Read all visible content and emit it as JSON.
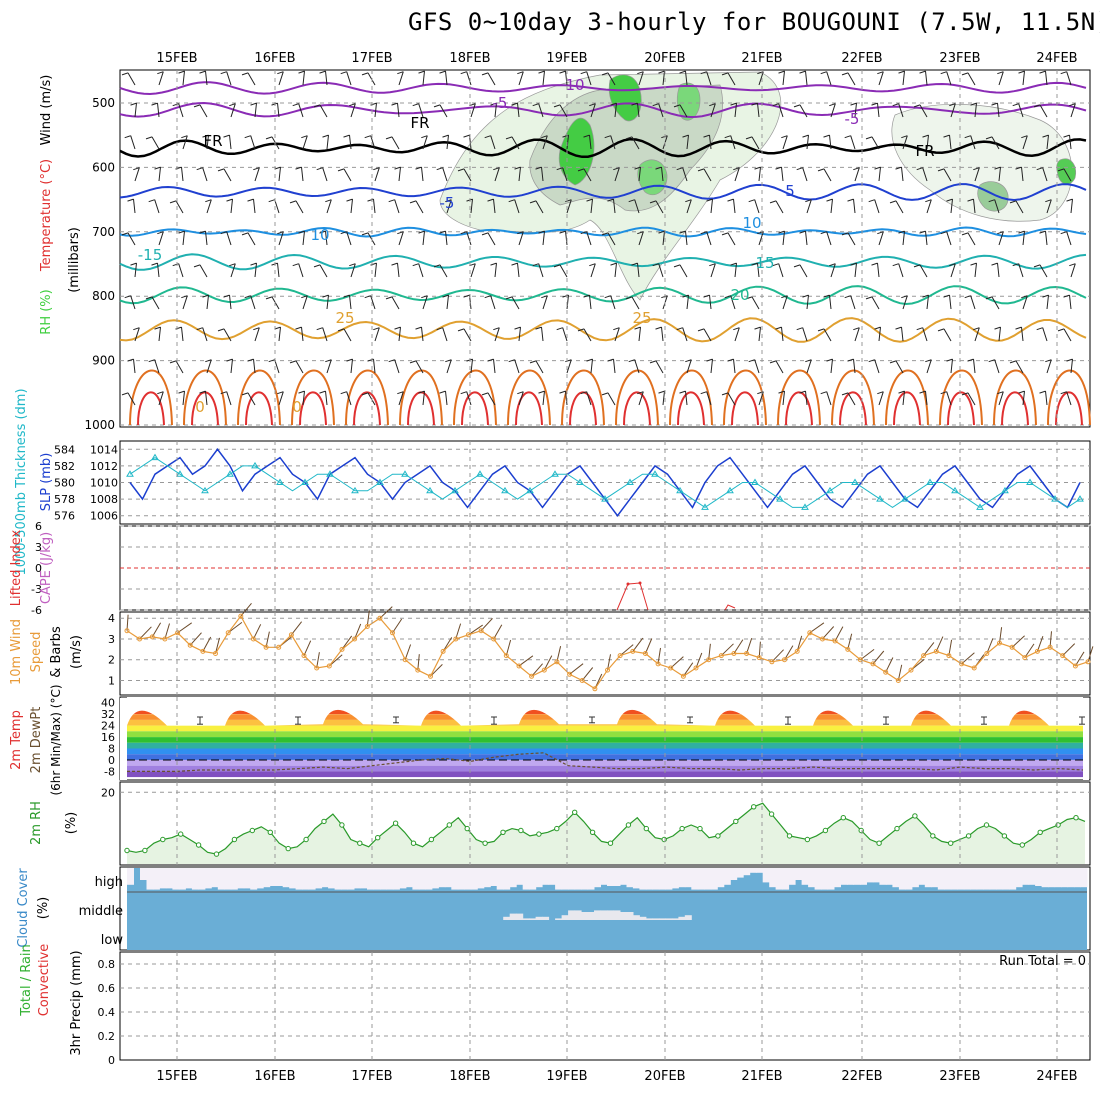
{
  "title": "GFS 0~10day 3-hourly for BOUGOUNI (7.5W, 11.5N)",
  "colors": {
    "rh_green": "#3fcf3f",
    "purple": "#8a2bb5",
    "blue": "#2040d0",
    "lightblue": "#1e8fe0",
    "teal": "#20b0b0",
    "green_teal": "#20b890",
    "orange": "#e0a030",
    "dark_orange": "#e07020",
    "red": "#e03030",
    "slp_blue": "#1c3fcf",
    "thickness_cyan": "#20b8c8",
    "wind_orange": "#e89b3a",
    "rh2m_green": "#2a9a2a",
    "cloud_blue": "#6aaed6",
    "cloud_white": "#f4f0f8"
  },
  "chart_data": {
    "type": "meteogram",
    "x_labels": [
      "15FEB",
      "16FEB",
      "17FEB",
      "18FEB",
      "19FEB",
      "20FEB",
      "21FEB",
      "22FEB",
      "23FEB",
      "24FEB"
    ],
    "panels": {
      "upper_air": {
        "ylabel_parts": [
          "RH (%)",
          "Temperature (°C)",
          "Wind (m/s)",
          "(millibars)"
        ],
        "yticks": [
          "500",
          "600",
          "700",
          "800",
          "900",
          "1000"
        ],
        "contour_labels": [
          "10",
          "-5",
          "FR",
          "FR",
          "FR",
          "-5",
          "5",
          "-5",
          "10",
          "10",
          "-15",
          "15",
          "20",
          "25",
          "25",
          "0",
          "0"
        ]
      },
      "slp": {
        "ylabel_left": "1000-500mb Thickness (dm)",
        "ylabel_right": "SLP (mb)",
        "left_ticks": [
          "584",
          "582",
          "580",
          "578",
          "576"
        ],
        "right_ticks": [
          "1014",
          "1012",
          "1010",
          "1008",
          "1006"
        ],
        "slp": [
          1010,
          1008,
          1011,
          1012,
          1013,
          1011,
          1012,
          1014,
          1012,
          1009,
          1011,
          1012,
          1013,
          1011,
          1010,
          1008,
          1011,
          1012,
          1013,
          1011,
          1010,
          1008,
          1010,
          1011,
          1012,
          1010,
          1009,
          1007,
          1009,
          1011,
          1012,
          1010,
          1009,
          1007,
          1009,
          1011,
          1012,
          1010,
          1008,
          1006,
          1008,
          1010,
          1012,
          1011,
          1009,
          1007,
          1010,
          1012,
          1013,
          1011,
          1009,
          1007,
          1009,
          1011,
          1012,
          1010,
          1008,
          1007,
          1009,
          1011,
          1012,
          1010,
          1008,
          1007,
          1009,
          1011,
          1012,
          1010,
          1008,
          1007,
          1009,
          1011,
          1012,
          1010,
          1008,
          1007,
          1010
        ],
        "thickness": [
          581,
          582,
          583,
          582,
          581,
          580,
          579,
          580,
          581,
          582,
          582,
          581,
          580,
          579,
          580,
          581,
          581,
          580,
          579,
          579,
          580,
          581,
          581,
          580,
          579,
          578,
          579,
          580,
          581,
          580,
          579,
          578,
          579,
          580,
          581,
          581,
          580,
          579,
          578,
          579,
          580,
          581,
          581,
          580,
          579,
          578,
          577,
          578,
          579,
          580,
          580,
          579,
          578,
          577,
          577,
          578,
          579,
          580,
          580,
          579,
          578,
          577,
          578,
          579,
          580,
          580,
          579,
          578,
          577,
          578,
          579,
          580,
          580,
          579,
          578,
          577,
          578
        ]
      },
      "cape": {
        "ylabel_left": "Lifted Index",
        "ylabel_right": "CAPE (J/kg)",
        "left_ticks": [
          "6",
          "3",
          "0",
          "-3",
          "-6"
        ]
      },
      "wind10m": {
        "ylabel": [
          "10m Wind",
          "Speed",
          "& Barbs",
          "(m/s)"
        ],
        "ticks": [
          "4",
          "3",
          "2",
          "1"
        ],
        "speed": [
          3.4,
          3.0,
          3.1,
          3.0,
          3.3,
          2.7,
          2.4,
          2.3,
          3.3,
          4.1,
          3.0,
          2.6,
          2.6,
          3.2,
          2.2,
          1.6,
          1.7,
          2.5,
          3.0,
          3.6,
          4.0,
          3.3,
          2.0,
          1.5,
          1.2,
          2.4,
          3.0,
          3.2,
          3.4,
          3.0,
          2.2,
          1.7,
          1.2,
          1.5,
          1.9,
          1.3,
          1.0,
          0.6,
          1.5,
          2.2,
          2.4,
          2.3,
          1.8,
          1.6,
          1.2,
          1.6,
          2.0,
          2.2,
          2.3,
          2.3,
          2.1,
          1.9,
          2.0,
          2.4,
          3.3,
          3.0,
          2.9,
          2.5,
          2.0,
          1.8,
          1.4,
          1.0,
          1.5,
          2.2,
          2.4,
          2.2,
          1.8,
          1.6,
          2.3,
          2.8,
          2.6,
          2.1,
          2.4,
          2.6,
          2.2,
          1.7,
          1.9
        ]
      },
      "temp2m": {
        "ylabel": [
          "2m Temp",
          "2m DewPt",
          "(6hr Min/Max) (°C)"
        ],
        "ticks": [
          "40",
          "32",
          "24",
          "16",
          "8",
          "0",
          "-8"
        ],
        "max_temp": [
          38,
          38,
          38,
          38,
          38,
          38,
          38,
          38,
          38,
          38
        ],
        "min_temp": [
          24,
          24,
          25,
          24,
          25,
          25,
          24,
          24,
          24,
          24
        ],
        "dewpoint": [
          -8,
          -8,
          -8,
          -7,
          -7,
          -7,
          -7,
          -6,
          -5,
          -6,
          -4,
          -2,
          0,
          1,
          -1,
          2,
          4,
          5,
          -4,
          -5,
          -6,
          -6,
          -5,
          -6,
          -6,
          -7,
          -6,
          -6,
          -5,
          -6,
          -6,
          -6,
          -6,
          -7,
          -5,
          -6,
          -6,
          -7,
          -6,
          -7
        ]
      },
      "rh2m": {
        "ylabel": [
          "2m RH",
          "(%)"
        ],
        "ticks": [
          "20"
        ],
        "values": [
          4,
          3.5,
          4,
          6,
          7,
          7.5,
          8.5,
          7,
          5.5,
          3.5,
          3,
          4.5,
          7,
          8.5,
          9.5,
          10.5,
          9,
          6,
          4.5,
          5,
          7,
          10,
          12,
          14,
          11,
          7,
          6,
          5,
          7.5,
          9.5,
          11.5,
          9,
          6,
          5,
          7,
          9,
          11,
          13,
          10,
          7,
          6,
          6.5,
          9,
          10,
          9.5,
          8,
          8.5,
          9,
          10,
          12,
          14.5,
          12,
          9,
          6.5,
          6,
          8.5,
          11,
          13,
          10,
          7.5,
          7,
          8,
          10,
          11,
          10,
          7.5,
          8,
          10,
          12,
          14,
          16,
          17,
          14,
          11,
          8,
          7.5,
          7,
          8,
          9.5,
          11.5,
          13,
          12,
          9.5,
          7,
          6,
          8,
          10,
          12,
          13.5,
          11,
          8,
          6.5,
          6,
          7,
          8,
          10,
          11,
          10,
          8,
          6,
          5.5,
          7,
          9,
          10,
          11,
          12.5,
          13,
          12
        ]
      },
      "cloud": {
        "ylabel": [
          "Cloud Cover",
          "(%)"
        ],
        "levels": [
          "high",
          "middle",
          "low"
        ],
        "high": [
          30,
          100,
          50,
          10,
          10,
          15,
          15,
          10,
          10,
          15,
          10,
          10,
          15,
          20,
          10,
          10,
          10,
          15,
          15,
          10,
          15,
          20,
          25,
          25,
          20,
          15,
          10,
          10,
          10,
          15,
          20,
          15,
          10,
          10,
          10,
          15,
          15,
          10,
          10,
          10,
          10,
          10,
          15,
          20,
          10,
          10,
          10,
          15,
          20,
          20,
          10,
          10,
          10,
          10,
          15,
          20,
          25,
          10,
          10,
          20,
          30,
          10,
          10,
          20,
          30,
          30,
          10,
          10,
          10,
          10,
          10,
          10,
          20,
          30,
          25,
          25,
          30,
          20,
          15,
          10,
          10,
          10,
          10,
          10,
          15,
          20,
          20,
          10,
          10,
          10,
          10,
          20,
          30,
          50,
          60,
          70,
          80,
          80,
          40,
          20,
          10,
          10,
          30,
          50,
          30,
          20,
          10,
          10,
          10,
          20,
          30,
          30,
          30,
          30,
          40,
          40,
          30,
          30,
          20,
          10,
          10,
          20,
          30,
          20,
          20,
          10,
          10,
          10,
          10,
          10,
          10,
          10,
          10,
          10,
          10,
          10,
          10,
          20,
          30,
          30,
          25,
          20,
          20,
          20,
          20,
          20,
          20,
          20
        ],
        "middle": [
          0,
          0,
          0,
          0,
          0,
          0,
          0,
          0,
          0,
          0,
          0,
          0,
          0,
          0,
          0,
          0,
          0,
          0,
          0,
          0,
          0,
          0,
          0,
          0,
          0,
          0,
          0,
          0,
          0,
          0,
          0,
          0,
          0,
          0,
          0,
          0,
          0,
          0,
          0,
          0,
          0,
          0,
          0,
          0,
          0,
          0,
          0,
          0,
          0,
          0,
          0,
          0,
          0,
          0,
          0,
          0,
          0,
          0,
          20,
          40,
          40,
          10,
          10,
          20,
          20,
          0,
          10,
          30,
          60,
          60,
          50,
          50,
          60,
          60,
          60,
          60,
          50,
          50,
          30,
          20,
          10,
          10,
          10,
          10,
          10,
          20,
          30,
          0,
          0,
          0,
          0,
          0,
          0,
          0,
          0,
          0,
          0,
          0,
          0,
          0,
          0,
          0,
          0,
          0,
          0,
          0,
          0,
          0,
          0,
          0,
          0,
          0,
          0,
          0,
          0,
          0,
          0,
          0,
          0,
          0,
          0,
          0,
          0,
          0,
          0,
          0,
          0,
          0,
          0,
          0,
          0,
          0,
          0,
          0,
          0,
          0,
          0,
          0,
          0,
          0,
          0,
          0,
          0,
          0,
          0,
          0
        ],
        "low": []
      },
      "precip": {
        "ylabel": [
          "Total / Rain",
          "Convective",
          "3hr Precip (mm)"
        ],
        "ticks": [
          "0.8",
          "0.6",
          "0.4",
          "0.2",
          "0"
        ],
        "run_total": "Run Total = 0",
        "total": [],
        "convective": []
      }
    }
  }
}
